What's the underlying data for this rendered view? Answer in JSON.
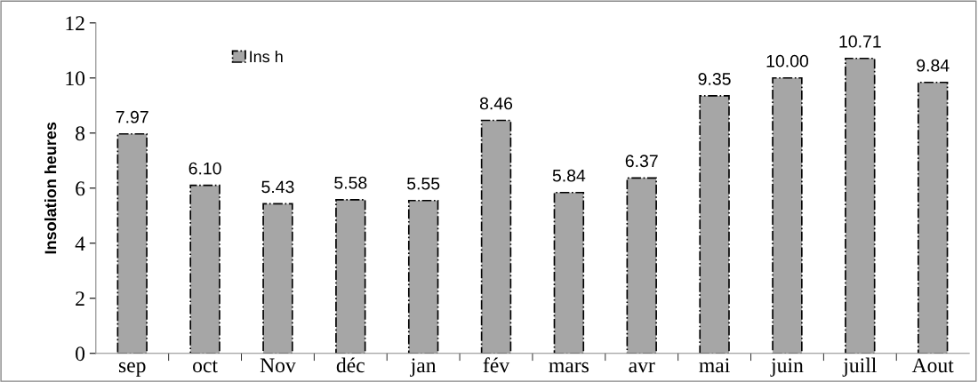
{
  "chart_data": {
    "type": "bar",
    "ylabel": "Insolation heures",
    "categories": [
      "sep",
      "oct",
      "Nov",
      "déc",
      "jan",
      "fév",
      "mars",
      "avr",
      "mai",
      "juin",
      "juill",
      "Aout"
    ],
    "series": [
      {
        "name": "Ins h",
        "color": "#a6a6a6",
        "values": [
          7.97,
          6.1,
          5.43,
          5.58,
          5.55,
          8.46,
          5.84,
          6.37,
          9.35,
          10.0,
          10.71,
          9.84
        ],
        "value_labels": [
          "7.97",
          "6.10",
          "5.43",
          "5.58",
          "5.55",
          "8.46",
          "5.84",
          "6.37",
          "9.35",
          "10.00",
          "10.71",
          "9.84"
        ]
      }
    ],
    "ylim": [
      0,
      12
    ],
    "yticks": [
      0,
      2,
      4,
      6,
      8,
      10,
      12
    ],
    "grid": false,
    "legend": "top left"
  }
}
